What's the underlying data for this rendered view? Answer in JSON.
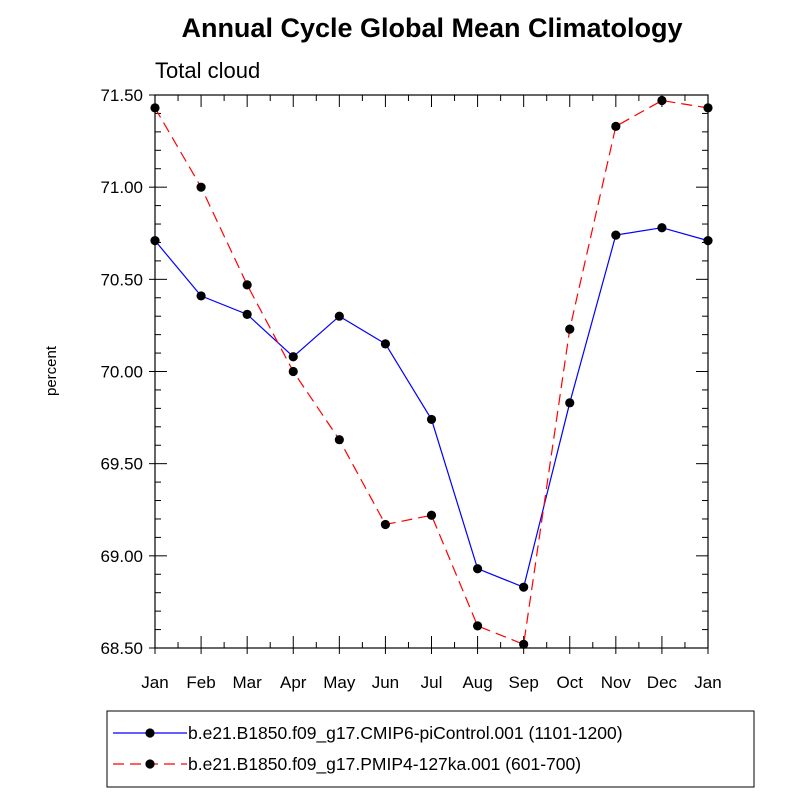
{
  "chart_data": {
    "type": "line",
    "title": "Annual Cycle Global Mean Climatology",
    "subtitle": "Total cloud",
    "xlabel": "",
    "ylabel": "percent",
    "categories": [
      "Jan",
      "Feb",
      "Mar",
      "Apr",
      "May",
      "Jun",
      "Jul",
      "Aug",
      "Sep",
      "Oct",
      "Nov",
      "Dec",
      "Jan"
    ],
    "ylim": [
      68.5,
      71.5
    ],
    "yticks": [
      "68.50",
      "69.00",
      "69.50",
      "70.00",
      "70.50",
      "71.00",
      "71.50"
    ],
    "grid": false,
    "legend_position": "bottom",
    "series": [
      {
        "name": "b.e21.B1850.f09_g17.CMIP6-piControl.001 (1101-1200)",
        "color": "#0000ff",
        "dash": "solid",
        "values": [
          70.71,
          70.41,
          70.31,
          70.08,
          70.3,
          70.15,
          69.74,
          68.93,
          68.83,
          69.83,
          70.74,
          70.78,
          70.71
        ]
      },
      {
        "name": "b.e21.B1850.f09_g17.PMIP4-127ka.001 (601-700)",
        "color": "#ff0000",
        "dash": "dashed",
        "values": [
          71.43,
          71.0,
          70.47,
          70.0,
          69.63,
          69.17,
          69.22,
          68.62,
          68.52,
          70.23,
          71.33,
          71.47,
          71.43
        ]
      }
    ]
  }
}
